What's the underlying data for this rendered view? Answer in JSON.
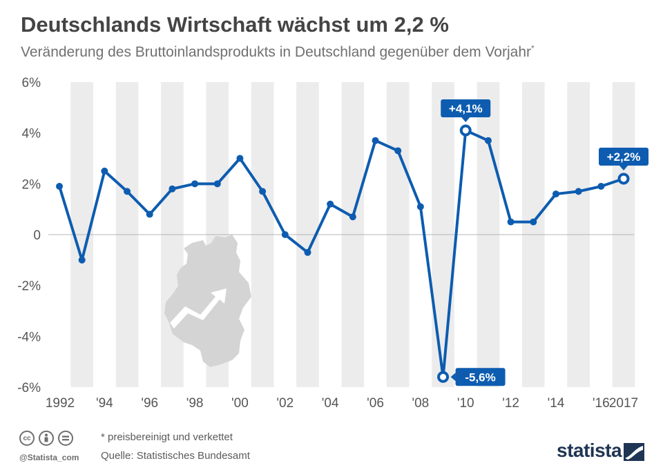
{
  "header": {
    "title": "Deutschlands Wirtschaft wächst um 2,2 %",
    "subtitle": "Veränderung des Bruttoinlandsprodukts in Deutschland gegenüber dem Vorjahr",
    "subtitle_marker": "*"
  },
  "footer": {
    "note": "* preisbereinigt und verkettet",
    "source": "Quelle: Statistisches Bundesamt",
    "handle": "@Statista_com",
    "brand": "statista",
    "license_icons": [
      "cc-icon",
      "attribution-icon",
      "no-derivatives-icon"
    ]
  },
  "colors": {
    "line": "#0d5cb0",
    "band": "#ececec",
    "axis_text": "#555555",
    "title": "#444444",
    "subtitle": "#707070",
    "map": "#d4d4d4",
    "brand": "#1f3554"
  },
  "chart_data": {
    "type": "line",
    "title": "Deutschlands Wirtschaft wächst um 2,2 %",
    "subtitle": "Veränderung des Bruttoinlandsprodukts in Deutschland gegenüber dem Vorjahr*",
    "x": [
      1992,
      1993,
      1994,
      1995,
      1996,
      1997,
      1998,
      1999,
      2000,
      2001,
      2002,
      2003,
      2004,
      2005,
      2006,
      2007,
      2008,
      2009,
      2010,
      2011,
      2012,
      2013,
      2014,
      2015,
      2016,
      2017
    ],
    "series": [
      {
        "values": [
          1.9,
          -1.0,
          2.5,
          1.7,
          0.8,
          1.8,
          2.0,
          2.0,
          3.0,
          1.7,
          0.0,
          -0.7,
          1.2,
          0.7,
          3.7,
          3.3,
          1.1,
          -5.6,
          4.1,
          3.7,
          0.5,
          0.5,
          1.6,
          1.7,
          1.9,
          2.2
        ]
      }
    ],
    "ylim": [
      -6,
      6
    ],
    "y_ticks": [
      6,
      4,
      2,
      0,
      -2,
      -4,
      -6
    ],
    "y_tick_labels": [
      "6%",
      "4%",
      "2%",
      "0",
      "-2%",
      "-4%",
      "-6%"
    ],
    "x_tick_labels": [
      {
        "year": 1992,
        "label": "1992"
      },
      {
        "year": 1994,
        "label": "'94"
      },
      {
        "year": 1996,
        "label": "'96"
      },
      {
        "year": 1998,
        "label": "'98"
      },
      {
        "year": 2000,
        "label": "'00"
      },
      {
        "year": 2002,
        "label": "'02"
      },
      {
        "year": 2004,
        "label": "'04"
      },
      {
        "year": 2006,
        "label": "'06"
      },
      {
        "year": 2008,
        "label": "'08"
      },
      {
        "year": 2010,
        "label": "'10"
      },
      {
        "year": 2012,
        "label": "'12"
      },
      {
        "year": 2014,
        "label": "'14"
      },
      {
        "year": 2016,
        "label": "'16"
      },
      {
        "year": 2017,
        "label": "2017"
      }
    ],
    "annotations": [
      {
        "year": 2010,
        "text": "+4,1%",
        "placement": "above"
      },
      {
        "year": 2017,
        "text": "+2,2%",
        "placement": "above"
      },
      {
        "year": 2009,
        "text": "-5,6%",
        "placement": "right"
      }
    ],
    "grid": "alternating vertical bands",
    "legend": "none"
  }
}
